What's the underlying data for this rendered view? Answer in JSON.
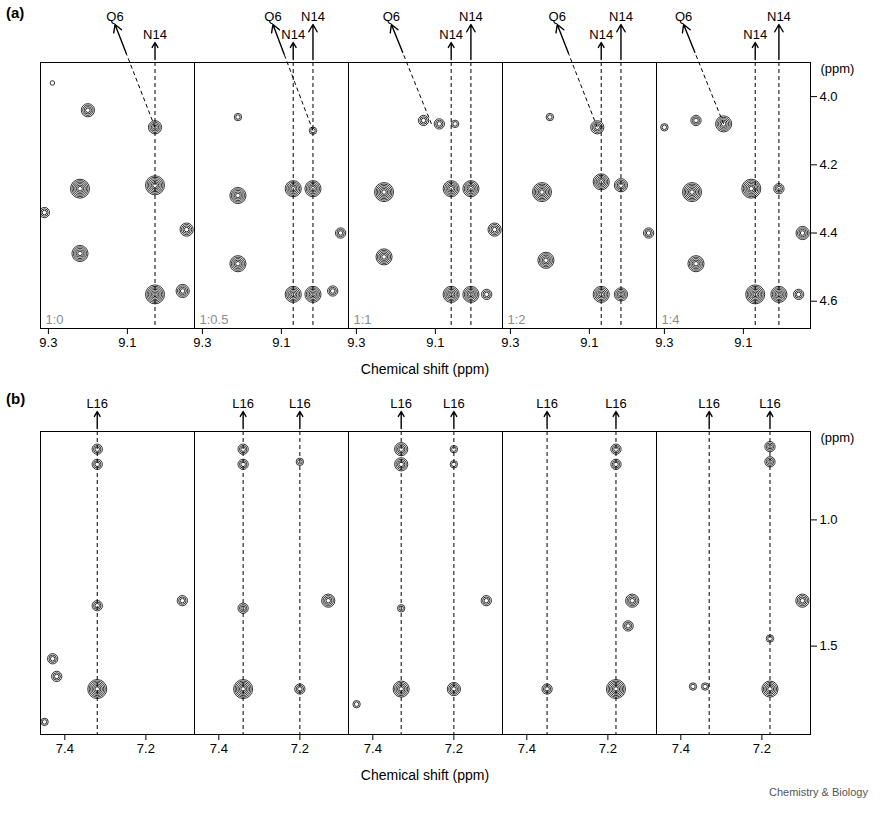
{
  "chart_data": [
    {
      "type": "contour",
      "panel_label": "(a)",
      "x_label": "Chemical shift (ppm)",
      "y_label": "(ppm)",
      "color": "#000000",
      "xlim": [
        9.32,
        8.93
      ],
      "xticks": [
        9.3,
        9.1
      ],
      "ylim": [
        3.9,
        4.68
      ],
      "yticks": [
        {
          "value": 4,
          "label": "4.0"
        },
        4.2,
        4.4,
        4.6
      ],
      "panels": [
        {
          "name": "1:0",
          "markers": [
            {
              "label": "N14",
              "x": 9.03
            }
          ],
          "pointers": [
            {
              "label": "Q6",
              "x": 9.03,
              "y": 4.09
            }
          ],
          "peaks": [
            {
              "x": 9.29,
              "y": 3.96,
              "levels": 1
            },
            {
              "x": 9.2,
              "y": 4.04,
              "levels": 4
            },
            {
              "x": 9.03,
              "y": 4.09,
              "levels": 4
            },
            {
              "x": 9.31,
              "y": 4.34,
              "levels": 3
            },
            {
              "x": 9.22,
              "y": 4.27,
              "levels": 6
            },
            {
              "x": 9.03,
              "y": 4.26,
              "levels": 6
            },
            {
              "x": 8.95,
              "y": 4.39,
              "levels": 4
            },
            {
              "x": 9.22,
              "y": 4.46,
              "levels": 5
            },
            {
              "x": 9.03,
              "y": 4.58,
              "levels": 6
            },
            {
              "x": 8.96,
              "y": 4.57,
              "levels": 4
            }
          ]
        },
        {
          "name": "1:0.5",
          "markers": [
            {
              "label": "N14",
              "x": 9.07
            },
            {
              "label": "N14",
              "x": 9.02
            }
          ],
          "pointers": [
            {
              "label": "Q6",
              "x": 9.02,
              "y": 4.1
            }
          ],
          "peaks": [
            {
              "x": 9.21,
              "y": 4.06,
              "levels": 2
            },
            {
              "x": 9.02,
              "y": 4.1,
              "levels": 2
            },
            {
              "x": 9.21,
              "y": 4.29,
              "levels": 5
            },
            {
              "x": 9.07,
              "y": 4.27,
              "levels": 5
            },
            {
              "x": 9.02,
              "y": 4.27,
              "levels": 5
            },
            {
              "x": 8.95,
              "y": 4.4,
              "levels": 3
            },
            {
              "x": 9.21,
              "y": 4.49,
              "levels": 5
            },
            {
              "x": 9.07,
              "y": 4.58,
              "levels": 5
            },
            {
              "x": 9.02,
              "y": 4.58,
              "levels": 5
            },
            {
              "x": 8.97,
              "y": 4.57,
              "levels": 3
            }
          ]
        },
        {
          "name": "1:1",
          "markers": [
            {
              "label": "N14",
              "x": 9.06
            },
            {
              "label": "N14",
              "x": 9.01
            }
          ],
          "pointers": [
            {
              "label": "Q6",
              "x": 9.11,
              "y": 4.08
            }
          ],
          "peaks": [
            {
              "x": 9.13,
              "y": 4.07,
              "levels": 3
            },
            {
              "x": 9.09,
              "y": 4.08,
              "levels": 3
            },
            {
              "x": 9.05,
              "y": 4.08,
              "levels": 2
            },
            {
              "x": 9.23,
              "y": 4.28,
              "levels": 6
            },
            {
              "x": 9.06,
              "y": 4.27,
              "levels": 5
            },
            {
              "x": 9.01,
              "y": 4.27,
              "levels": 5
            },
            {
              "x": 8.95,
              "y": 4.39,
              "levels": 4
            },
            {
              "x": 9.23,
              "y": 4.47,
              "levels": 5
            },
            {
              "x": 9.06,
              "y": 4.58,
              "levels": 5
            },
            {
              "x": 9.01,
              "y": 4.58,
              "levels": 5
            },
            {
              "x": 8.97,
              "y": 4.58,
              "levels": 3
            }
          ]
        },
        {
          "name": "1:2",
          "markers": [
            {
              "label": "N14",
              "x": 9.07
            },
            {
              "label": "N14",
              "x": 9.02
            }
          ],
          "pointers": [
            {
              "label": "Q6",
              "x": 9.08,
              "y": 4.09
            }
          ],
          "peaks": [
            {
              "x": 9.2,
              "y": 4.06,
              "levels": 2
            },
            {
              "x": 9.08,
              "y": 4.09,
              "levels": 4
            },
            {
              "x": 9.22,
              "y": 4.28,
              "levels": 6
            },
            {
              "x": 9.07,
              "y": 4.25,
              "levels": 5
            },
            {
              "x": 9.02,
              "y": 4.26,
              "levels": 4
            },
            {
              "x": 8.95,
              "y": 4.4,
              "levels": 3
            },
            {
              "x": 9.21,
              "y": 4.48,
              "levels": 5
            },
            {
              "x": 9.07,
              "y": 4.58,
              "levels": 5
            },
            {
              "x": 9.02,
              "y": 4.58,
              "levels": 4
            }
          ]
        },
        {
          "name": "1:4",
          "markers": [
            {
              "label": "N14",
              "x": 9.07
            },
            {
              "label": "N14",
              "x": 9.01
            }
          ],
          "pointers": [
            {
              "label": "Q6",
              "x": 9.15,
              "y": 4.08
            }
          ],
          "peaks": [
            {
              "x": 9.3,
              "y": 4.09,
              "levels": 2
            },
            {
              "x": 9.22,
              "y": 4.07,
              "levels": 3
            },
            {
              "x": 9.15,
              "y": 4.08,
              "levels": 5
            },
            {
              "x": 9.23,
              "y": 4.28,
              "levels": 6
            },
            {
              "x": 9.08,
              "y": 4.27,
              "levels": 6
            },
            {
              "x": 9.01,
              "y": 4.27,
              "levels": 3
            },
            {
              "x": 8.95,
              "y": 4.4,
              "levels": 4
            },
            {
              "x": 9.22,
              "y": 4.49,
              "levels": 5
            },
            {
              "x": 9.07,
              "y": 4.58,
              "levels": 6
            },
            {
              "x": 9.01,
              "y": 4.58,
              "levels": 5
            },
            {
              "x": 8.96,
              "y": 4.58,
              "levels": 3
            }
          ]
        }
      ]
    },
    {
      "type": "contour",
      "panel_label": "(b)",
      "x_label": "Chemical shift (ppm)",
      "y_label": "(ppm)",
      "color": "#000000",
      "xlim": [
        7.46,
        7.08
      ],
      "xticks": [
        7.4,
        7.2
      ],
      "ylim": [
        0.65,
        1.85
      ],
      "yticks": [
        {
          "value": 1,
          "label": "1.0"
        },
        1.5
      ],
      "panels": [
        {
          "markers": [
            {
              "label": "L16",
              "x": 7.32
            }
          ],
          "peaks": [
            {
              "x": 7.32,
              "y": 0.72,
              "levels": 3
            },
            {
              "x": 7.32,
              "y": 0.78,
              "levels": 3
            },
            {
              "x": 7.32,
              "y": 1.34,
              "levels": 3
            },
            {
              "x": 7.32,
              "y": 1.67,
              "levels": 6
            },
            {
              "x": 7.11,
              "y": 1.32,
              "levels": 3
            },
            {
              "x": 7.43,
              "y": 1.55,
              "levels": 3
            },
            {
              "x": 7.42,
              "y": 1.62,
              "levels": 3
            },
            {
              "x": 7.45,
              "y": 1.8,
              "levels": 2
            }
          ]
        },
        {
          "markers": [
            {
              "label": "L16",
              "x": 7.34
            },
            {
              "label": "L16",
              "x": 7.2
            }
          ],
          "peaks": [
            {
              "x": 7.34,
              "y": 0.72,
              "levels": 3
            },
            {
              "x": 7.34,
              "y": 0.78,
              "levels": 3
            },
            {
              "x": 7.2,
              "y": 0.77,
              "levels": 2
            },
            {
              "x": 7.34,
              "y": 1.35,
              "levels": 3
            },
            {
              "x": 7.34,
              "y": 1.67,
              "levels": 6
            },
            {
              "x": 7.2,
              "y": 1.67,
              "levels": 3
            },
            {
              "x": 7.13,
              "y": 1.32,
              "levels": 4
            }
          ]
        },
        {
          "markers": [
            {
              "label": "L16",
              "x": 7.33
            },
            {
              "label": "L16",
              "x": 7.2
            }
          ],
          "peaks": [
            {
              "x": 7.33,
              "y": 0.72,
              "levels": 4
            },
            {
              "x": 7.33,
              "y": 0.78,
              "levels": 4
            },
            {
              "x": 7.2,
              "y": 0.72,
              "levels": 2
            },
            {
              "x": 7.2,
              "y": 0.78,
              "levels": 2
            },
            {
              "x": 7.33,
              "y": 1.35,
              "levels": 2
            },
            {
              "x": 7.33,
              "y": 1.67,
              "levels": 5
            },
            {
              "x": 7.2,
              "y": 1.67,
              "levels": 4
            },
            {
              "x": 7.12,
              "y": 1.32,
              "levels": 3
            },
            {
              "x": 7.44,
              "y": 1.73,
              "levels": 2
            }
          ]
        },
        {
          "markers": [
            {
              "label": "L16",
              "x": 7.35
            },
            {
              "label": "L16",
              "x": 7.18
            }
          ],
          "peaks": [
            {
              "x": 7.18,
              "y": 0.72,
              "levels": 3
            },
            {
              "x": 7.18,
              "y": 0.78,
              "levels": 3
            },
            {
              "x": 7.35,
              "y": 1.67,
              "levels": 3
            },
            {
              "x": 7.18,
              "y": 1.67,
              "levels": 6
            },
            {
              "x": 7.14,
              "y": 1.32,
              "levels": 4
            },
            {
              "x": 7.15,
              "y": 1.42,
              "levels": 3
            }
          ]
        },
        {
          "markers": [
            {
              "label": "L16",
              "x": 7.33
            },
            {
              "label": "L16",
              "x": 7.18
            }
          ],
          "peaks": [
            {
              "x": 7.18,
              "y": 0.71,
              "levels": 3
            },
            {
              "x": 7.18,
              "y": 0.77,
              "levels": 3
            },
            {
              "x": 7.18,
              "y": 1.47,
              "levels": 2
            },
            {
              "x": 7.18,
              "y": 1.67,
              "levels": 5
            },
            {
              "x": 7.34,
              "y": 1.66,
              "levels": 2
            },
            {
              "x": 7.37,
              "y": 1.66,
              "levels": 2
            },
            {
              "x": 7.1,
              "y": 1.32,
              "levels": 4
            }
          ]
        }
      ]
    }
  ],
  "credit": "Chemistry & Biology"
}
